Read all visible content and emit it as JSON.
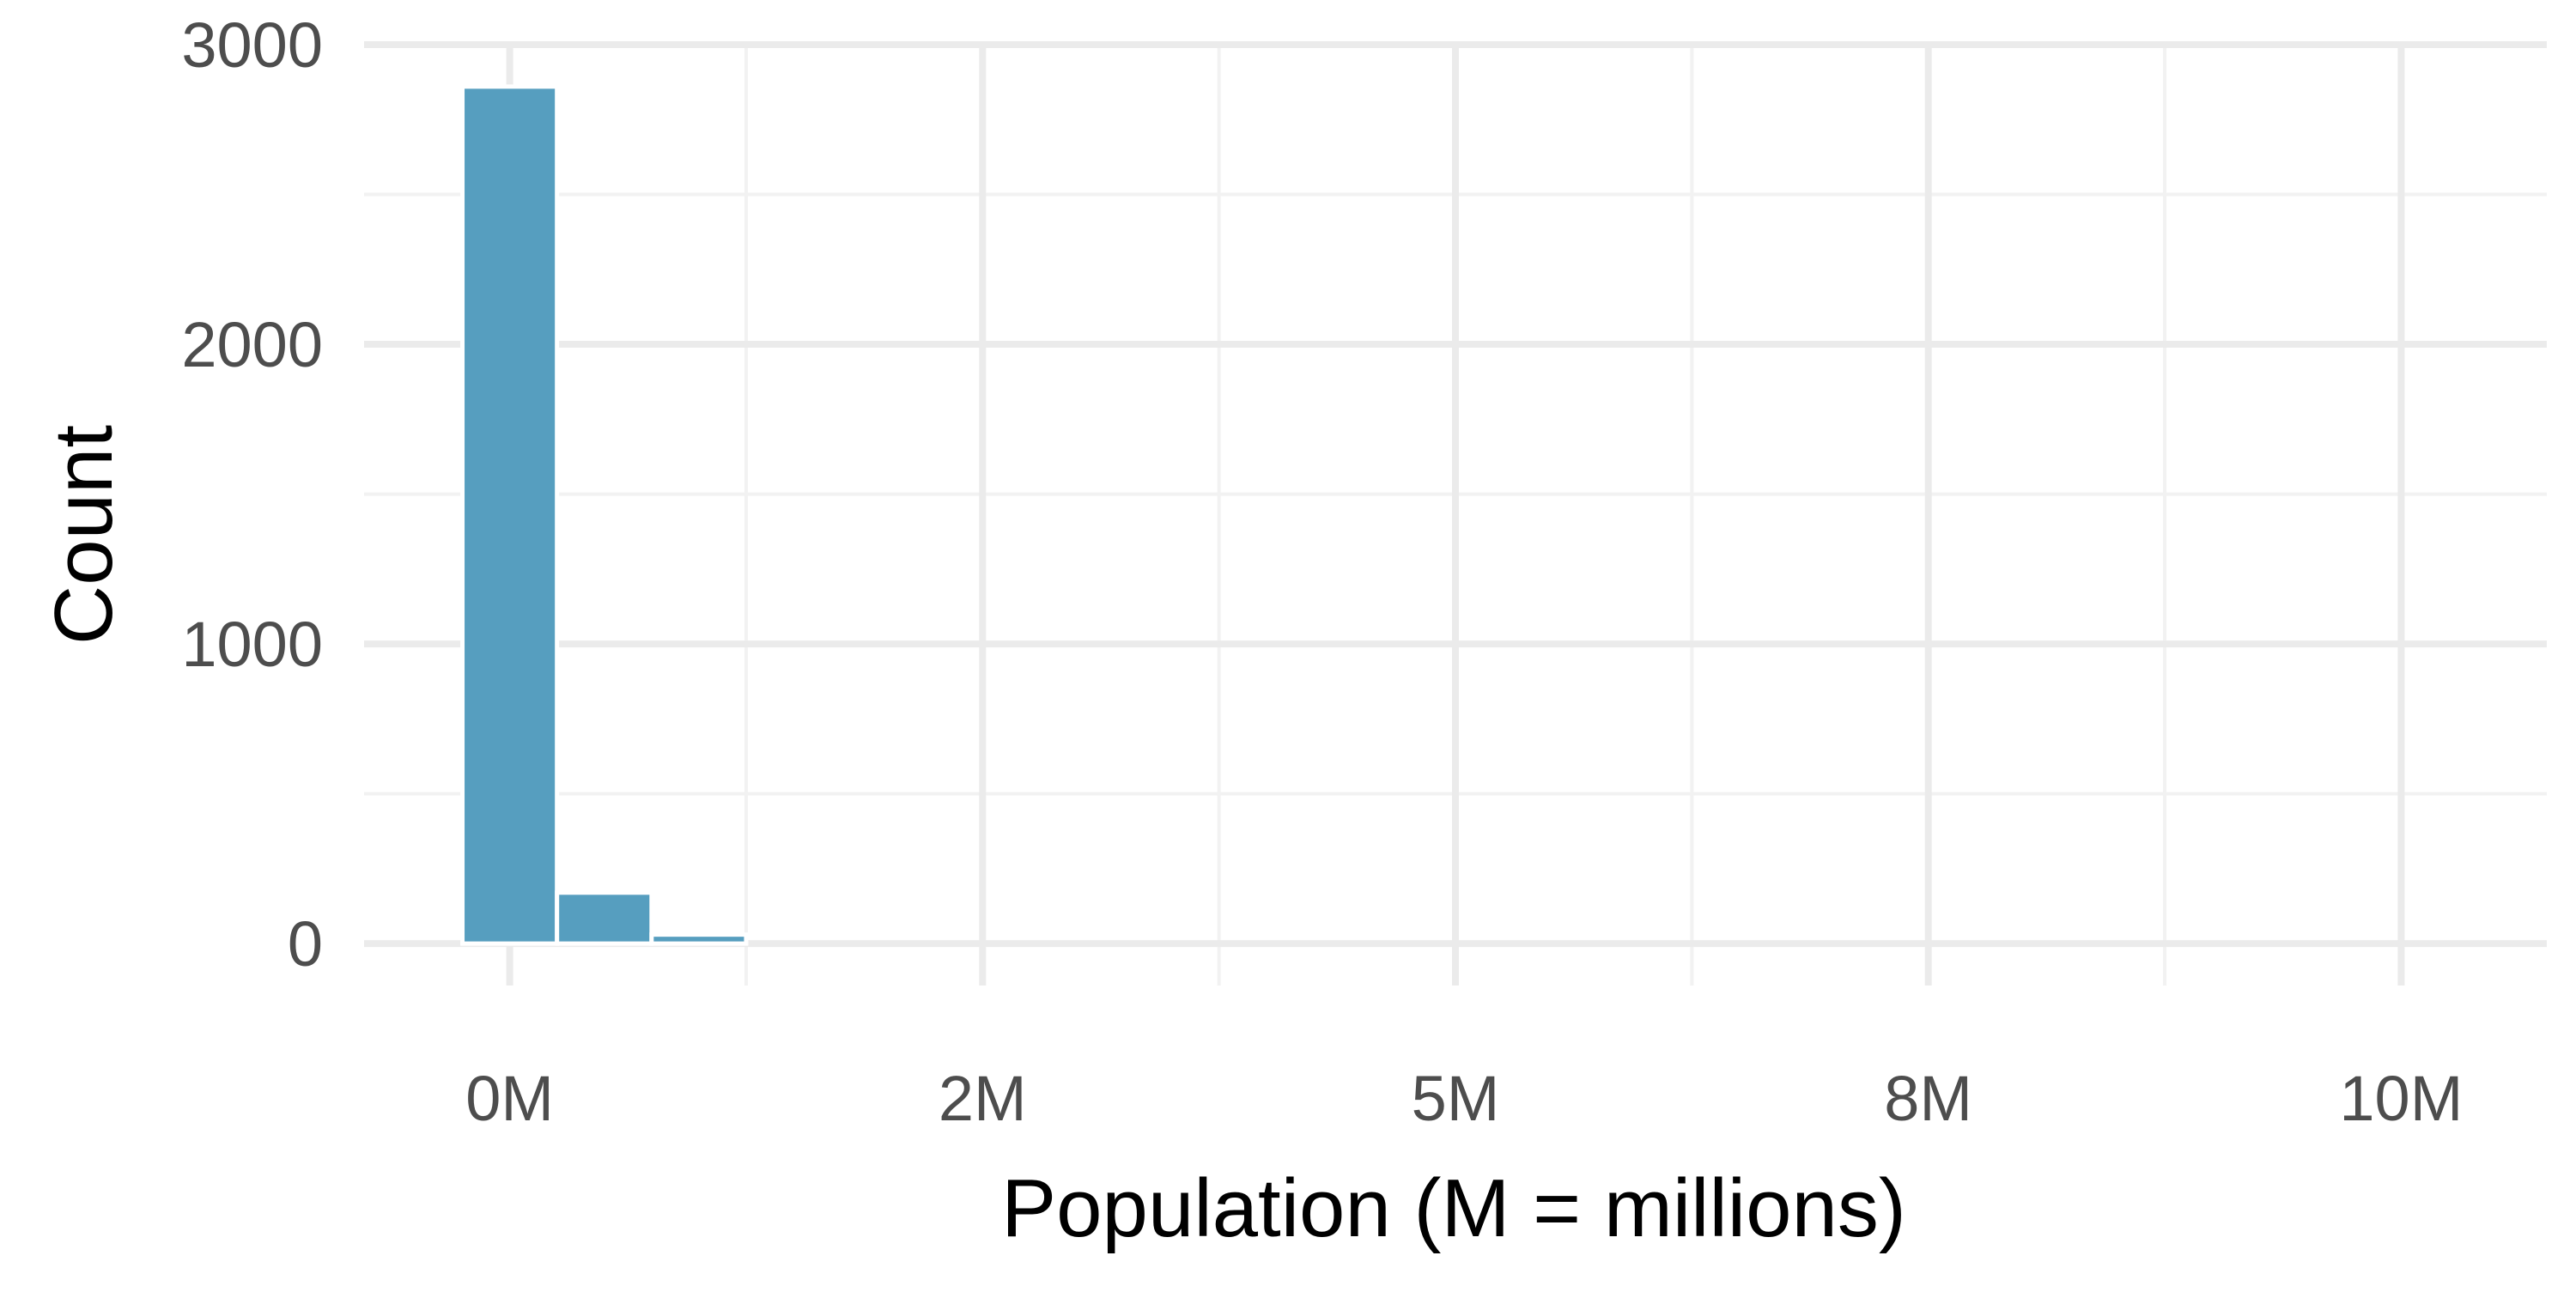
{
  "chart_data": {
    "type": "bar",
    "title": "",
    "xlabel": "Population (M = millions)",
    "ylabel": "Count",
    "x_ticks": [
      {
        "value": 0,
        "label": "0M"
      },
      {
        "value": 2.5,
        "label": "2M"
      },
      {
        "value": 5,
        "label": "5M"
      },
      {
        "value": 7.5,
        "label": "8M"
      },
      {
        "value": 10,
        "label": "10M"
      }
    ],
    "y_ticks": [
      0,
      1000,
      2000,
      3000
    ],
    "xlim": [
      -0.77,
      10.77
    ],
    "ylim": [
      -140,
      3000
    ],
    "bin_width": 0.5,
    "bars": [
      {
        "x_start": -0.25,
        "x_end": 0.25,
        "count": 2860
      },
      {
        "x_start": 0.25,
        "x_end": 0.75,
        "count": 170
      },
      {
        "x_start": 0.75,
        "x_end": 1.25,
        "count": 30
      }
    ],
    "grid": true,
    "legend": "none",
    "colors": {
      "bar": "#569ebf",
      "grid_major": "#ebebeb",
      "grid_minor": "#f2f2f2",
      "background": "#ffffff"
    }
  }
}
